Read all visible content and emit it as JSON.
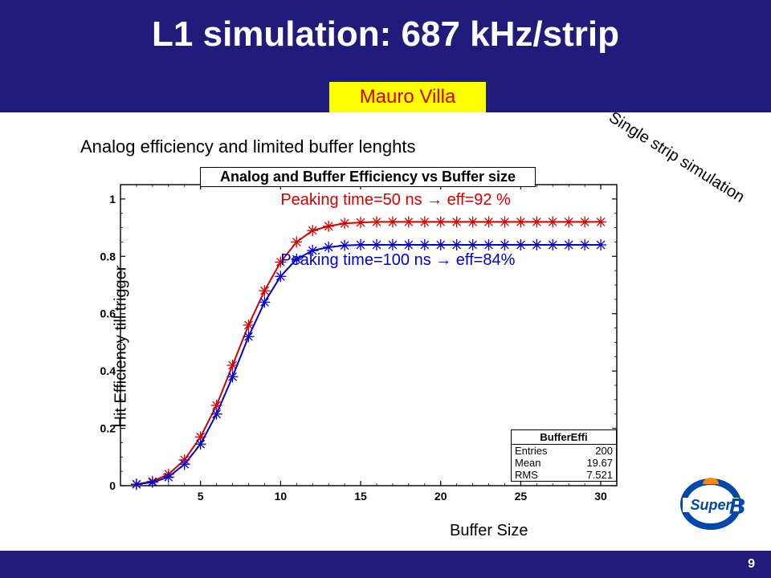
{
  "slide": {
    "title": "L1 simulation: 687 kHz/strip",
    "author": "Mauro Villa",
    "subtitle": "Analog efficiency and limited buffer lenghts",
    "diagonal_label": "Single strip simulation",
    "ylabel": "Hit Efficiency till trigger",
    "xlabel": "Buffer Size",
    "page_number": "9",
    "footer_color": "#1f1c7c",
    "title_bg": "#1f1c7c",
    "title_color": "#ffffff",
    "author_bg": "#ffff00",
    "author_color": "#d00000"
  },
  "chart": {
    "type": "line-scatter",
    "plot_title": "Analog and Buffer Efficiency vs Buffer size",
    "xlim": [
      0,
      31
    ],
    "ylim": [
      0,
      1.05
    ],
    "xticks": [
      5,
      10,
      15,
      20,
      25,
      30
    ],
    "yticks": [
      0,
      0.2,
      0.4,
      0.6,
      0.8,
      1
    ],
    "tick_fontsize": 14,
    "tick_fontweight": "bold",
    "axis_color": "#000000",
    "tick_length": 6,
    "background_color": "#ffffff",
    "marker": "asterisk",
    "marker_size": 7,
    "line_width": 2,
    "series": [
      {
        "name": "Peaking time 50 ns",
        "color": "#d00000",
        "x": [
          1,
          2,
          3,
          4,
          5,
          6,
          7,
          8,
          9,
          10,
          11,
          12,
          13,
          14,
          15,
          16,
          17,
          18,
          19,
          20,
          21,
          22,
          23,
          24,
          25,
          26,
          27,
          28,
          29,
          30
        ],
        "y": [
          0.005,
          0.015,
          0.04,
          0.09,
          0.17,
          0.28,
          0.42,
          0.56,
          0.68,
          0.78,
          0.85,
          0.89,
          0.905,
          0.915,
          0.918,
          0.92,
          0.92,
          0.92,
          0.92,
          0.92,
          0.92,
          0.92,
          0.92,
          0.92,
          0.92,
          0.92,
          0.92,
          0.92,
          0.92,
          0.92
        ]
      },
      {
        "name": "Peaking time 100 ns",
        "color": "#0000d0",
        "x": [
          1,
          2,
          3,
          4,
          5,
          6,
          7,
          8,
          9,
          10,
          11,
          12,
          13,
          14,
          15,
          16,
          17,
          18,
          19,
          20,
          21,
          22,
          23,
          24,
          25,
          26,
          27,
          28,
          29,
          30
        ],
        "y": [
          0.005,
          0.012,
          0.03,
          0.075,
          0.145,
          0.25,
          0.38,
          0.52,
          0.64,
          0.73,
          0.79,
          0.82,
          0.832,
          0.838,
          0.84,
          0.84,
          0.84,
          0.84,
          0.84,
          0.84,
          0.84,
          0.84,
          0.84,
          0.84,
          0.84,
          0.84,
          0.84,
          0.84,
          0.84,
          0.84
        ]
      }
    ],
    "annotations": [
      {
        "text": "Peaking time=50 ns  →  eff=92 %",
        "color": "#d00000",
        "data_x": 10,
        "data_y": 1.0
      },
      {
        "text": "Peaking time=100 ns  →  eff=84%",
        "color": "#0000d0",
        "data_x": 10,
        "data_y": 0.79
      }
    ],
    "stats": {
      "title": "BufferEffi",
      "entries_label": "Entries",
      "entries_value": "200",
      "mean_label": "Mean",
      "mean_value": "19.67",
      "rms_label": "RMS",
      "rms_value": "7.521"
    }
  },
  "logo": {
    "text": "SuperB",
    "text_color": "#0047ab",
    "dome_color": "#ff8c00",
    "ring_color": "#0047ab"
  }
}
